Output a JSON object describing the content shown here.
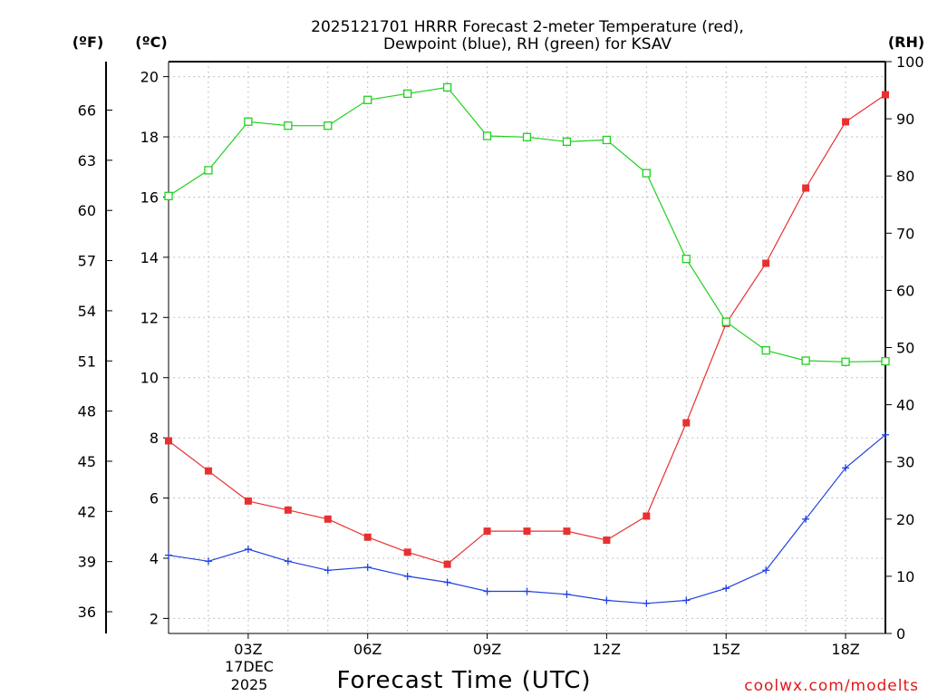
{
  "chart_data": {
    "type": "line",
    "title_line1": "2025121701 HRRR Forecast 2-meter Temperature (red),",
    "title_line2": "Dewpoint (blue), RH (green) for KSAV",
    "xlabel": "Forecast Time (UTC)",
    "credit": "coolwx.com/modelts",
    "unit_f": "(ºF)",
    "unit_c": "(ºC)",
    "unit_rh": "(RH)",
    "x_hours": [
      1,
      2,
      3,
      4,
      5,
      6,
      7,
      8,
      9,
      10,
      11,
      12,
      13,
      14,
      15,
      16,
      17,
      18,
      19
    ],
    "xlim": [
      1,
      19
    ],
    "ylim_c": [
      1.5,
      20.5
    ],
    "ylim_rh": [
      0,
      100
    ],
    "x_ticks": [
      {
        "hour": 3,
        "label": "03Z"
      },
      {
        "hour": 6,
        "label": "06Z"
      },
      {
        "hour": 9,
        "label": "09Z"
      },
      {
        "hour": 12,
        "label": "12Z"
      },
      {
        "hour": 15,
        "label": "15Z"
      },
      {
        "hour": 18,
        "label": "18Z"
      }
    ],
    "date_line1": "17DEC",
    "date_line2": "2025",
    "c_ticks": [
      "2",
      "4",
      "6",
      "8",
      "10",
      "12",
      "14",
      "16",
      "18",
      "20"
    ],
    "f_ticks": [
      "36",
      "39",
      "42",
      "45",
      "48",
      "51",
      "54",
      "57",
      "60",
      "63",
      "66"
    ],
    "rh_ticks": [
      "0",
      "10",
      "20",
      "30",
      "40",
      "50",
      "60",
      "70",
      "80",
      "90",
      "100"
    ],
    "series": [
      {
        "name": "Temperature",
        "unit": "C",
        "color": "#e83030",
        "marker": "filled-square",
        "values": [
          7.9,
          6.9,
          5.9,
          5.6,
          5.3,
          4.7,
          4.2,
          3.8,
          4.9,
          4.9,
          4.9,
          4.6,
          5.4,
          8.5,
          11.8,
          13.8,
          16.3,
          18.5,
          19.4
        ]
      },
      {
        "name": "Dewpoint",
        "unit": "C",
        "color": "#2040e0",
        "marker": "plus",
        "values": [
          4.1,
          3.9,
          4.3,
          3.9,
          3.6,
          3.7,
          3.4,
          3.2,
          2.9,
          2.9,
          2.8,
          2.6,
          2.5,
          2.6,
          3.0,
          3.6,
          5.3,
          7.0,
          8.1
        ]
      },
      {
        "name": "RH",
        "unit": "%",
        "color": "#20d020",
        "marker": "open-square",
        "values": [
          76.5,
          81,
          89.5,
          88.8,
          88.8,
          93.3,
          94.4,
          95.5,
          87,
          86.8,
          86,
          86.3,
          80.5,
          65.5,
          54.5,
          49.5,
          47.7,
          47.5,
          47.6
        ]
      }
    ]
  }
}
